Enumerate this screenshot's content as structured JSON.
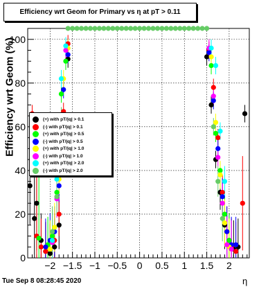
{
  "title": "Efficiency wrt Geom for Primary vs   η at pT > 0.11",
  "timestamp": "Tue Sep  8 08:28:45 2020",
  "chart_data": {
    "type": "scatter",
    "title": "Efficiency wrt Geom for Primary vs   η at pT > 0.11",
    "xlabel": "η",
    "ylabel": "Efficiency wrt Geom (%)",
    "xlim": [
      -2.5,
      2.45
    ],
    "ylim": [
      0,
      105
    ],
    "grid": true,
    "legend_position": "middle-left",
    "xticks": [
      -2,
      -1.5,
      -1,
      -0.5,
      0,
      0.5,
      1,
      1.5,
      2
    ],
    "xtick_labels": [
      "−2",
      "−1.5",
      "−1",
      "−0.5",
      "0",
      "0.5",
      "1",
      "1.5",
      "2"
    ],
    "yticks": [
      0,
      20,
      40,
      60,
      80,
      100
    ],
    "ytick_labels": [
      "0",
      "20",
      "40",
      "60",
      "80",
      "100"
    ],
    "series": [
      {
        "name": "(+) with pT/|q| > 0.1",
        "color": "#000000",
        "x": [
          -2.45,
          -2.35,
          -2.3,
          -2.2,
          -2.1,
          -2.0,
          -1.9,
          -1.8,
          -1.7,
          -1.6,
          1.5,
          1.6,
          1.7,
          1.8,
          1.9,
          2.0,
          2.1,
          2.2,
          2.35
        ],
        "y": [
          33,
          18,
          25,
          8,
          3,
          2,
          5,
          15,
          55,
          91,
          92,
          70,
          45,
          30,
          15,
          8,
          4,
          5,
          66
        ]
      },
      {
        "name": "(-) with pT/|q| > 0.1",
        "color": "#ff0000",
        "x": [
          -2.4,
          -2.3,
          -2.2,
          -2.1,
          -2.0,
          -1.9,
          -1.8,
          -1.7,
          -1.6,
          1.55,
          1.65,
          1.75,
          1.85,
          1.95,
          2.05,
          2.15,
          2.3
        ],
        "y": [
          66,
          10,
          5,
          3,
          4,
          8,
          20,
          67,
          98,
          95,
          78,
          55,
          30,
          12,
          5,
          3,
          25
        ]
      },
      {
        "name": "(+) with pT/|q| > 0.5",
        "color": "#00ff00",
        "x": [
          -2.25,
          -2.05,
          -1.95,
          -1.85,
          -1.75,
          -1.65,
          1.6,
          1.7,
          1.8,
          1.9,
          2.0
        ],
        "y": [
          9,
          6,
          10,
          30,
          75,
          90,
          88,
          57,
          40,
          20,
          8
        ]
      },
      {
        "name": "(-) with pT/|q| > 0.5",
        "color": "#0000ff",
        "x": [
          -2.1,
          -2.0,
          -1.9,
          -1.8,
          -1.7,
          -1.6,
          1.55,
          1.65,
          1.75,
          1.85,
          1.95,
          2.05,
          2.15
        ],
        "y": [
          5,
          8,
          12,
          33,
          77,
          93,
          94,
          72,
          50,
          28,
          12,
          6,
          6
        ]
      },
      {
        "name": "(+) with pT/|q| > 1.0",
        "color": "#ffff00",
        "x": [
          -2.0,
          -1.9,
          -1.8,
          -1.7,
          -1.6,
          1.6,
          1.7,
          1.8,
          1.9,
          2.0
        ],
        "y": [
          4,
          14,
          36,
          82,
          96,
          92,
          62,
          38,
          16,
          5
        ]
      },
      {
        "name": "(-) with pT/|q| > 1.0",
        "color": "#ff00ff",
        "x": [
          -1.95,
          -1.85,
          -1.75,
          -1.65,
          1.55,
          1.65,
          1.75,
          1.85,
          1.95,
          2.05
        ],
        "y": [
          7,
          27,
          60,
          95,
          96,
          74,
          46,
          25,
          6,
          4
        ]
      },
      {
        "name": "(+) with pT/|q| > 2.0",
        "color": "#00ffff",
        "x": [
          -1.95,
          -1.85,
          -1.75,
          -1.65,
          1.6,
          1.7,
          1.8,
          1.9
        ],
        "y": [
          8,
          36,
          82,
          97,
          96,
          88,
          58,
          35
        ]
      },
      {
        "name": "(-) with pT/|q| > 2.0",
        "color": "#66cc66",
        "x": [
          -1.95,
          -1.85,
          -1.75,
          -1.6,
          -1.5,
          -1.4,
          -1.3,
          -1.2,
          -1.1,
          -1.0,
          -0.9,
          -0.8,
          -0.7,
          -0.6,
          -0.5,
          -0.4,
          -0.3,
          -0.2,
          -0.1,
          0.0,
          0.1,
          0.2,
          0.3,
          0.4,
          0.5,
          0.6,
          0.7,
          0.8,
          0.9,
          1.0,
          1.1,
          1.2,
          1.3,
          1.4,
          1.5,
          1.65,
          1.75,
          1.85
        ],
        "y": [
          12,
          28,
          65,
          105,
          105,
          105,
          105,
          105,
          105,
          105,
          105,
          105,
          105,
          105,
          105,
          105,
          105,
          105,
          105,
          105,
          105,
          105,
          105,
          105,
          105,
          105,
          105,
          105,
          105,
          105,
          105,
          105,
          105,
          105,
          105,
          60,
          35,
          18
        ]
      }
    ]
  }
}
